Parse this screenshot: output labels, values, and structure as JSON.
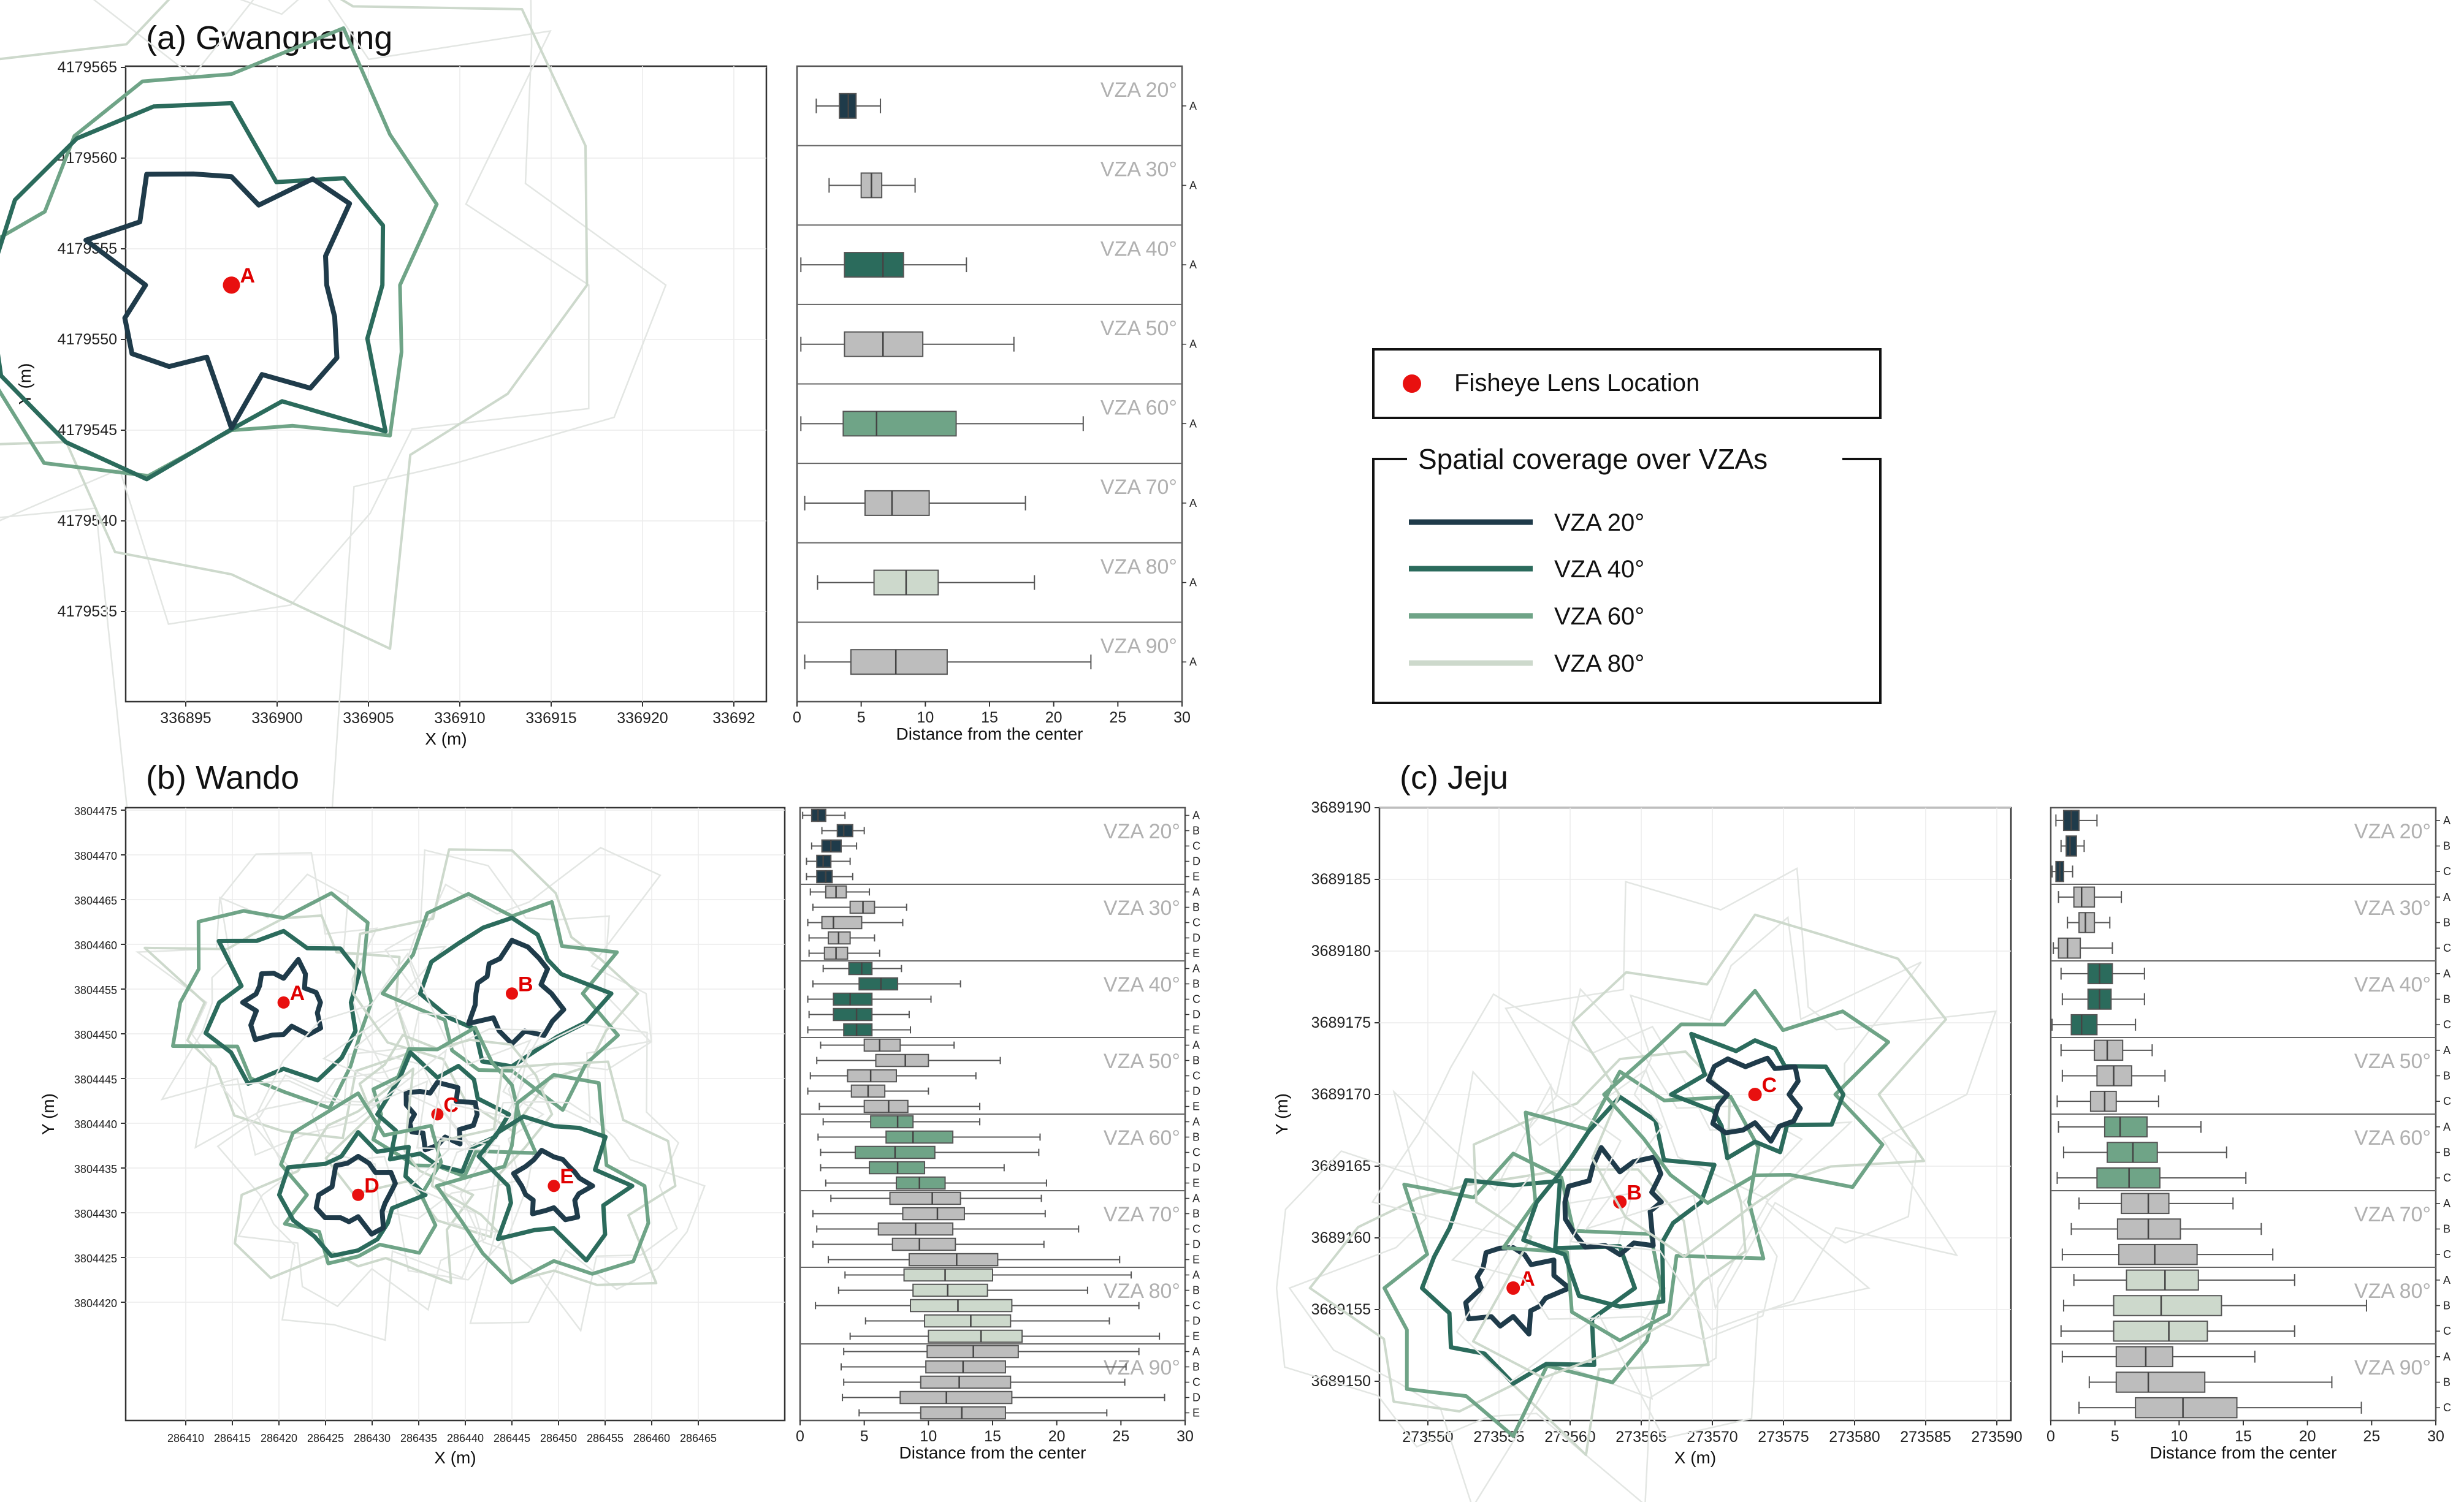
{
  "colors": {
    "vza20": "#1f3b4a",
    "vza40": "#2b6b5c",
    "vza60": "#6fa487",
    "vza80": "#cdd9cc",
    "grey": "#bdbdbd",
    "lens": "#e8100f"
  },
  "legend": {
    "lens_label": "Fisheye Lens Location",
    "title": "Spatial coverage over VZAs",
    "items": [
      "VZA 20°",
      "VZA 40°",
      "VZA 60°",
      "VZA 80°"
    ]
  },
  "vza_labels": [
    "VZA 20°",
    "VZA 30°",
    "VZA 40°",
    "VZA 50°",
    "VZA 60°",
    "VZA 70°",
    "VZA 80°",
    "VZA 90°"
  ],
  "chart_data": [
    {
      "type": "line",
      "panel": "a",
      "title": "(a) Gwangneung",
      "xlabel": "X (m)",
      "ylabel": "Y (m)",
      "xticks": [
        "336895",
        "336900",
        "336905",
        "336910",
        "336915",
        "336920",
        "33692"
      ],
      "yticks": [
        "4179565",
        "4179560",
        "4179555",
        "4179550",
        "4179545",
        "4179540",
        "4179535"
      ],
      "sites": [
        {
          "name": "A",
          "x": 336897.5,
          "y": 4179553
        }
      ]
    },
    {
      "type": "box",
      "panel": "a",
      "xlabel": "Distance from the center",
      "xticks": [
        "0",
        "5",
        "10",
        "15",
        "20",
        "25",
        "30"
      ],
      "sites": [
        "A"
      ],
      "groups": [
        {
          "vza": 20,
          "boxes": [
            {
              "site": "A",
              "wmin": 1.5,
              "q1": 3.3,
              "med": 4.0,
              "q3": 4.6,
              "wmax": 6.5
            }
          ]
        },
        {
          "vza": 30,
          "boxes": [
            {
              "site": "A",
              "wmin": 2.5,
              "q1": 5.0,
              "med": 5.8,
              "q3": 6.6,
              "wmax": 9.2
            }
          ]
        },
        {
          "vza": 40,
          "boxes": [
            {
              "site": "A",
              "wmin": 0.3,
              "q1": 3.7,
              "med": 6.7,
              "q3": 8.3,
              "wmax": 13.2
            }
          ]
        },
        {
          "vza": 50,
          "boxes": [
            {
              "site": "A",
              "wmin": 0.3,
              "q1": 3.7,
              "med": 6.7,
              "q3": 9.8,
              "wmax": 16.9
            }
          ]
        },
        {
          "vza": 60,
          "boxes": [
            {
              "site": "A",
              "wmin": 0.3,
              "q1": 3.6,
              "med": 6.2,
              "q3": 12.4,
              "wmax": 22.3
            }
          ]
        },
        {
          "vza": 70,
          "boxes": [
            {
              "site": "A",
              "wmin": 0.6,
              "q1": 5.3,
              "med": 7.4,
              "q3": 10.3,
              "wmax": 17.8
            }
          ]
        },
        {
          "vza": 80,
          "boxes": [
            {
              "site": "A",
              "wmin": 1.6,
              "q1": 6.0,
              "med": 8.5,
              "q3": 11.0,
              "wmax": 18.5
            }
          ]
        },
        {
          "vza": 90,
          "boxes": [
            {
              "site": "A",
              "wmin": 0.6,
              "q1": 4.2,
              "med": 7.7,
              "q3": 11.7,
              "wmax": 22.9
            }
          ]
        }
      ]
    },
    {
      "type": "line",
      "panel": "b",
      "title": "(b) Wando",
      "xlabel": "X (m)",
      "ylabel": "Y (m)",
      "xticks": [
        "286410",
        "286415",
        "286420",
        "286425",
        "286430",
        "286435",
        "286440",
        "286445",
        "286450",
        "286455",
        "286460",
        "286465"
      ],
      "yticks": [
        "3804475",
        "3804470",
        "3804465",
        "3804460",
        "3804455",
        "3804450",
        "3804445",
        "3804440",
        "3804435",
        "3804430",
        "3804425",
        "3804420"
      ],
      "sites": [
        {
          "name": "A",
          "x": 286420.5,
          "y": 3804453.5
        },
        {
          "name": "B",
          "x": 286445.0,
          "y": 3804454.5
        },
        {
          "name": "C",
          "x": 286437.0,
          "y": 3804441.0
        },
        {
          "name": "D",
          "x": 286428.5,
          "y": 3804432.0
        },
        {
          "name": "E",
          "x": 286449.5,
          "y": 3804433.0
        }
      ]
    },
    {
      "type": "box",
      "panel": "b",
      "xlabel": "Distance from the center",
      "xticks": [
        "0",
        "5",
        "10",
        "15",
        "20",
        "25",
        "30"
      ],
      "sites": [
        "A",
        "B",
        "C",
        "D",
        "E"
      ],
      "groups": [
        {
          "vza": 20,
          "boxes": [
            {
              "site": "A",
              "wmin": 0.2,
              "q1": 0.9,
              "med": 1.4,
              "q3": 2.0,
              "wmax": 3.5
            },
            {
              "site": "B",
              "wmin": 1.7,
              "q1": 2.9,
              "med": 3.4,
              "q3": 4.1,
              "wmax": 5.0
            },
            {
              "site": "C",
              "wmin": 0.9,
              "q1": 1.7,
              "med": 2.4,
              "q3": 3.2,
              "wmax": 4.4
            },
            {
              "site": "D",
              "wmin": 0.5,
              "q1": 1.3,
              "med": 1.8,
              "q3": 2.4,
              "wmax": 3.9
            },
            {
              "site": "E",
              "wmin": 0.5,
              "q1": 1.3,
              "med": 2.0,
              "q3": 2.5,
              "wmax": 4.1
            }
          ]
        },
        {
          "vza": 30,
          "boxes": [
            {
              "site": "A",
              "wmin": 0.8,
              "q1": 2.0,
              "med": 2.8,
              "q3": 3.6,
              "wmax": 5.4
            },
            {
              "site": "B",
              "wmin": 1.0,
              "q1": 3.9,
              "med": 4.9,
              "q3": 5.8,
              "wmax": 8.3
            },
            {
              "site": "C",
              "wmin": 0.6,
              "q1": 1.7,
              "med": 2.6,
              "q3": 4.8,
              "wmax": 8.0
            },
            {
              "site": "D",
              "wmin": 0.7,
              "q1": 2.2,
              "med": 3.0,
              "q3": 3.9,
              "wmax": 5.8
            },
            {
              "site": "E",
              "wmin": 0.7,
              "q1": 1.9,
              "med": 2.8,
              "q3": 3.7,
              "wmax": 6.2
            }
          ]
        },
        {
          "vza": 40,
          "boxes": [
            {
              "site": "A",
              "wmin": 1.8,
              "q1": 3.8,
              "med": 4.8,
              "q3": 5.6,
              "wmax": 7.9
            },
            {
              "site": "B",
              "wmin": 1.0,
              "q1": 4.6,
              "med": 6.3,
              "q3": 7.6,
              "wmax": 12.5
            },
            {
              "site": "C",
              "wmin": 0.6,
              "q1": 2.6,
              "med": 3.9,
              "q3": 5.6,
              "wmax": 10.2
            },
            {
              "site": "D",
              "wmin": 0.7,
              "q1": 2.6,
              "med": 4.4,
              "q3": 5.6,
              "wmax": 8.5
            },
            {
              "site": "E",
              "wmin": 0.6,
              "q1": 3.4,
              "med": 4.4,
              "q3": 5.6,
              "wmax": 8.6
            }
          ]
        },
        {
          "vza": 50,
          "boxes": [
            {
              "site": "A",
              "wmin": 1.6,
              "q1": 5.0,
              "med": 6.2,
              "q3": 7.8,
              "wmax": 12.0
            },
            {
              "site": "B",
              "wmin": 1.3,
              "q1": 5.9,
              "med": 8.2,
              "q3": 10.0,
              "wmax": 15.6
            },
            {
              "site": "C",
              "wmin": 0.8,
              "q1": 3.7,
              "med": 5.5,
              "q3": 7.5,
              "wmax": 13.7
            },
            {
              "site": "D",
              "wmin": 0.6,
              "q1": 4.0,
              "med": 5.3,
              "q3": 6.6,
              "wmax": 10.0
            },
            {
              "site": "E",
              "wmin": 1.5,
              "q1": 5.0,
              "med": 6.9,
              "q3": 8.4,
              "wmax": 14.0
            }
          ]
        },
        {
          "vza": 60,
          "boxes": [
            {
              "site": "A",
              "wmin": 1.8,
              "q1": 5.5,
              "med": 7.6,
              "q3": 8.8,
              "wmax": 14.0
            },
            {
              "site": "B",
              "wmin": 1.4,
              "q1": 6.7,
              "med": 8.8,
              "q3": 11.9,
              "wmax": 18.7
            },
            {
              "site": "C",
              "wmin": 1.6,
              "q1": 4.3,
              "med": 7.4,
              "q3": 10.5,
              "wmax": 18.6
            },
            {
              "site": "D",
              "wmin": 1.6,
              "q1": 5.4,
              "med": 7.6,
              "q3": 9.7,
              "wmax": 15.9
            },
            {
              "site": "E",
              "wmin": 2.0,
              "q1": 7.5,
              "med": 9.3,
              "q3": 11.3,
              "wmax": 19.2
            }
          ]
        },
        {
          "vza": 70,
          "boxes": [
            {
              "site": "A",
              "wmin": 2.4,
              "q1": 7.0,
              "med": 10.3,
              "q3": 12.5,
              "wmax": 18.8
            },
            {
              "site": "B",
              "wmin": 1.0,
              "q1": 8.0,
              "med": 10.7,
              "q3": 12.8,
              "wmax": 19.1
            },
            {
              "site": "C",
              "wmin": 1.3,
              "q1": 6.1,
              "med": 9.0,
              "q3": 11.9,
              "wmax": 21.7
            },
            {
              "site": "D",
              "wmin": 1.0,
              "q1": 7.2,
              "med": 9.3,
              "q3": 12.1,
              "wmax": 19.0
            },
            {
              "site": "E",
              "wmin": 2.2,
              "q1": 8.5,
              "med": 12.2,
              "q3": 15.4,
              "wmax": 24.9
            }
          ]
        },
        {
          "vza": 80,
          "boxes": [
            {
              "site": "A",
              "wmin": 3.5,
              "q1": 8.1,
              "med": 11.3,
              "q3": 15.0,
              "wmax": 25.8
            },
            {
              "site": "B",
              "wmin": 3.0,
              "q1": 8.8,
              "med": 11.5,
              "q3": 14.6,
              "wmax": 22.4
            },
            {
              "site": "C",
              "wmin": 1.2,
              "q1": 8.6,
              "med": 12.3,
              "q3": 16.5,
              "wmax": 26.4
            },
            {
              "site": "D",
              "wmin": 5.1,
              "q1": 9.7,
              "med": 13.3,
              "q3": 16.4,
              "wmax": 24.1
            },
            {
              "site": "E",
              "wmin": 3.9,
              "q1": 10.0,
              "med": 14.1,
              "q3": 17.3,
              "wmax": 28.0
            }
          ]
        },
        {
          "vza": 90,
          "boxes": [
            {
              "site": "A",
              "wmin": 3.4,
              "q1": 9.9,
              "med": 13.5,
              "q3": 17.0,
              "wmax": 26.4
            },
            {
              "site": "B",
              "wmin": 3.2,
              "q1": 9.8,
              "med": 12.7,
              "q3": 16.0,
              "wmax": 25.4
            },
            {
              "site": "C",
              "wmin": 3.4,
              "q1": 9.4,
              "med": 12.4,
              "q3": 16.4,
              "wmax": 25.3
            },
            {
              "site": "D",
              "wmin": 3.3,
              "q1": 7.8,
              "med": 11.4,
              "q3": 16.5,
              "wmax": 28.4
            },
            {
              "site": "E",
              "wmin": 4.6,
              "q1": 9.4,
              "med": 12.6,
              "q3": 16.0,
              "wmax": 23.9
            }
          ]
        }
      ]
    },
    {
      "type": "line",
      "panel": "c",
      "title": "(c) Jeju",
      "xlabel": "X (m)",
      "ylabel": "Y (m)",
      "xticks": [
        "273550",
        "273555",
        "273560",
        "273565",
        "273570",
        "273575",
        "273580",
        "273585",
        "273590"
      ],
      "yticks": [
        "3689190",
        "3689185",
        "3689180",
        "3689175",
        "3689170",
        "3689165",
        "3689160",
        "3689155",
        "3689150"
      ],
      "sites": [
        {
          "name": "A",
          "x": 273556.0,
          "y": 3689156.5
        },
        {
          "name": "B",
          "x": 273563.5,
          "y": 3689162.5
        },
        {
          "name": "C",
          "x": 273573.0,
          "y": 3689170.0
        }
      ]
    },
    {
      "type": "box",
      "panel": "c",
      "xlabel": "Distance from the center",
      "xticks": [
        "0",
        "5",
        "10",
        "15",
        "20",
        "25",
        "30"
      ],
      "sites": [
        "A",
        "B",
        "C"
      ],
      "groups": [
        {
          "vza": 20,
          "boxes": [
            {
              "site": "A",
              "wmin": 0.4,
              "q1": 1.0,
              "med": 1.6,
              "q3": 2.2,
              "wmax": 3.6
            },
            {
              "site": "B",
              "wmin": 0.8,
              "q1": 1.2,
              "med": 1.5,
              "q3": 2.0,
              "wmax": 2.6
            },
            {
              "site": "C",
              "wmin": 0.1,
              "q1": 0.4,
              "med": 0.7,
              "q3": 1.0,
              "wmax": 1.7
            }
          ]
        },
        {
          "vza": 30,
          "boxes": [
            {
              "site": "A",
              "wmin": 0.6,
              "q1": 1.8,
              "med": 2.4,
              "q3": 3.4,
              "wmax": 5.5
            },
            {
              "site": "B",
              "wmin": 1.3,
              "q1": 2.2,
              "med": 2.7,
              "q3": 3.4,
              "wmax": 4.6
            },
            {
              "site": "C",
              "wmin": 0.2,
              "q1": 0.6,
              "med": 1.3,
              "q3": 2.3,
              "wmax": 4.8
            }
          ]
        },
        {
          "vza": 40,
          "boxes": [
            {
              "site": "A",
              "wmin": 0.8,
              "q1": 2.9,
              "med": 3.8,
              "q3": 4.8,
              "wmax": 7.3
            },
            {
              "site": "B",
              "wmin": 0.9,
              "q1": 2.9,
              "med": 3.8,
              "q3": 4.7,
              "wmax": 7.3
            },
            {
              "site": "C",
              "wmin": 0.1,
              "q1": 1.6,
              "med": 2.4,
              "q3": 3.6,
              "wmax": 6.6
            }
          ]
        },
        {
          "vza": 50,
          "boxes": [
            {
              "site": "A",
              "wmin": 0.8,
              "q1": 3.4,
              "med": 4.4,
              "q3": 5.6,
              "wmax": 7.9
            },
            {
              "site": "B",
              "wmin": 0.9,
              "q1": 3.6,
              "med": 4.9,
              "q3": 6.3,
              "wmax": 8.9
            },
            {
              "site": "C",
              "wmin": 0.5,
              "q1": 3.1,
              "med": 4.2,
              "q3": 5.1,
              "wmax": 8.4
            }
          ]
        },
        {
          "vza": 60,
          "boxes": [
            {
              "site": "A",
              "wmin": 0.6,
              "q1": 4.2,
              "med": 5.4,
              "q3": 7.5,
              "wmax": 11.7
            },
            {
              "site": "B",
              "wmin": 1.0,
              "q1": 4.4,
              "med": 6.4,
              "q3": 8.3,
              "wmax": 13.7
            },
            {
              "site": "C",
              "wmin": 0.5,
              "q1": 3.6,
              "med": 6.1,
              "q3": 8.5,
              "wmax": 15.2
            }
          ]
        },
        {
          "vza": 70,
          "boxes": [
            {
              "site": "A",
              "wmin": 2.2,
              "q1": 5.5,
              "med": 7.6,
              "q3": 9.2,
              "wmax": 14.2
            },
            {
              "site": "B",
              "wmin": 1.6,
              "q1": 5.2,
              "med": 7.6,
              "q3": 10.1,
              "wmax": 16.4
            },
            {
              "site": "C",
              "wmin": 0.9,
              "q1": 5.3,
              "med": 8.1,
              "q3": 11.4,
              "wmax": 17.3
            }
          ]
        },
        {
          "vza": 80,
          "boxes": [
            {
              "site": "A",
              "wmin": 1.8,
              "q1": 5.9,
              "med": 8.9,
              "q3": 11.5,
              "wmax": 19.0
            },
            {
              "site": "B",
              "wmin": 1.0,
              "q1": 4.9,
              "med": 8.6,
              "q3": 13.3,
              "wmax": 24.6
            },
            {
              "site": "C",
              "wmin": 0.8,
              "q1": 4.9,
              "med": 9.2,
              "q3": 12.2,
              "wmax": 19.0
            }
          ]
        },
        {
          "vza": 90,
          "boxes": [
            {
              "site": "A",
              "wmin": 0.9,
              "q1": 5.1,
              "med": 7.4,
              "q3": 9.5,
              "wmax": 15.9
            },
            {
              "site": "B",
              "wmin": 3.0,
              "q1": 5.1,
              "med": 7.6,
              "q3": 12.0,
              "wmax": 21.9
            },
            {
              "site": "C",
              "wmin": 2.2,
              "q1": 6.6,
              "med": 10.3,
              "q3": 14.5,
              "wmax": 24.2
            }
          ]
        }
      ]
    }
  ]
}
